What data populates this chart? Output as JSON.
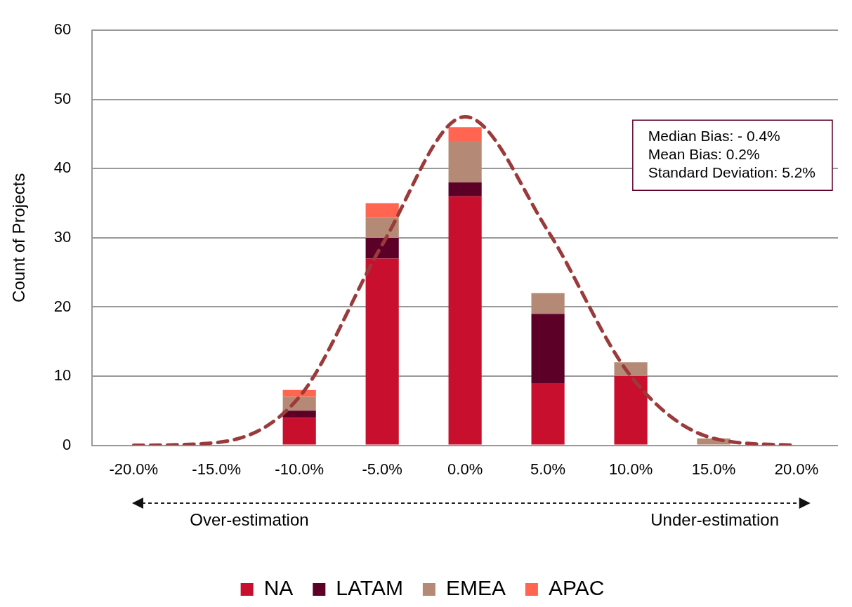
{
  "chart_data": {
    "type": "bar",
    "stacked": true,
    "ylabel": "Count of Projects",
    "categories": [
      "-20.0%",
      "-15.0%",
      "-10.0%",
      "-5.0%",
      "0.0%",
      "5.0%",
      "10.0%",
      "15.0%",
      "20.0%"
    ],
    "series": [
      {
        "name": "NA",
        "color": "#c8102e",
        "values": [
          0,
          0,
          4,
          27,
          36,
          9,
          10,
          0,
          0
        ]
      },
      {
        "name": "LATAM",
        "color": "#5c0028",
        "values": [
          0,
          0,
          1,
          3,
          2,
          10,
          0,
          0,
          0
        ]
      },
      {
        "name": "EMEA",
        "color": "#b48a76",
        "values": [
          0,
          0,
          2,
          3,
          6,
          3,
          2,
          1,
          0
        ]
      },
      {
        "name": "APAC",
        "color": "#ff6550",
        "values": [
          0,
          0,
          1,
          2,
          2,
          0,
          0,
          0,
          0
        ]
      },
      {
        "type": "line",
        "color": "#9b3a3a",
        "line_style": "dashed",
        "marker": "none",
        "values": [
          0,
          0.4,
          7,
          29,
          47.5,
          31,
          10,
          1,
          0
        ]
      }
    ],
    "ylim": [
      0,
      60
    ],
    "yticks": [
      0,
      10,
      20,
      30,
      40,
      50,
      60
    ],
    "grid": "y",
    "legend": "bottom",
    "annotations": [
      "Median Bias: - 0.4%",
      "Mean Bias: 0.2%",
      "Standard Deviation: 5.2%",
      "Over-estimation",
      "Under-estimation"
    ]
  }
}
